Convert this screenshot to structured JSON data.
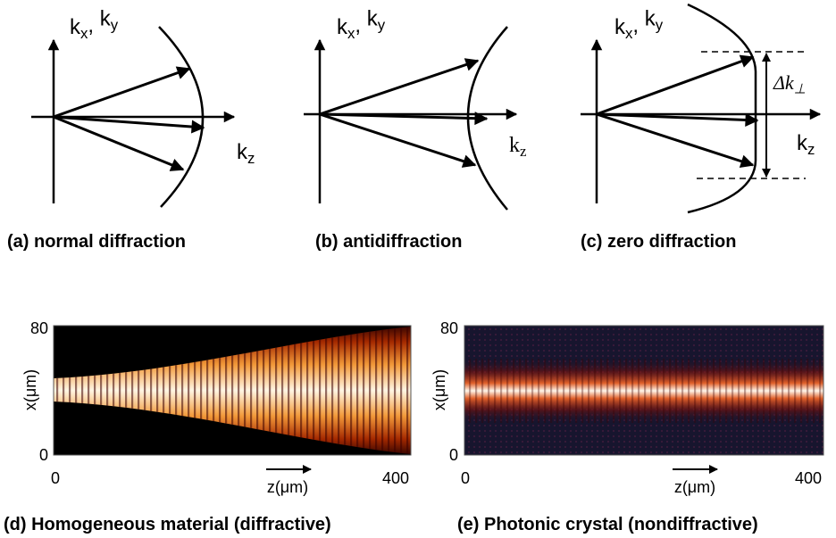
{
  "panels": [
    {
      "label_k": "kx, ky",
      "label_kz": "kz",
      "caption": "(a) normal diffraction"
    },
    {
      "label_k": "kx, ky",
      "label_kz": "kz",
      "caption": "(b) antidiffraction"
    },
    {
      "label_k": "kx, ky",
      "label_kz": "kz",
      "label_delta": "Δk⊥",
      "caption": "(c) zero diffraction"
    }
  ],
  "maps": [
    {
      "y_top": "80",
      "y_bottom": "0",
      "y_label": "x(μm)",
      "x_left": "0",
      "x_right": "400",
      "x_label": "z(μm)",
      "caption": "(d) Homogeneous material (diffractive)"
    },
    {
      "y_top": "80",
      "y_bottom": "0",
      "y_label": "x(μm)",
      "x_left": "0",
      "x_right": "400",
      "x_label": "z(μm)",
      "caption": "(e) Photonic crystal (nondiffractive)"
    }
  ]
}
